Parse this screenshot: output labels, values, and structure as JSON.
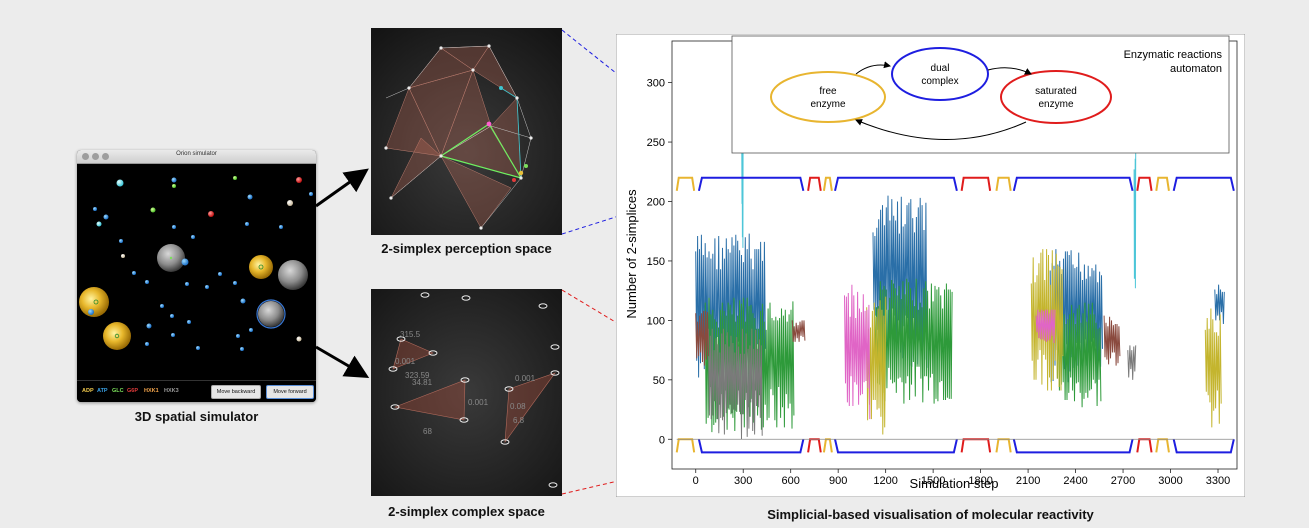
{
  "simulator": {
    "title": "Orion simulator",
    "legend": [
      {
        "label": "ADP",
        "color": "#f2c94c"
      },
      {
        "label": "ATP",
        "color": "#3aa3e8"
      },
      {
        "label": "GLC",
        "color": "#7be05a"
      },
      {
        "label": "G6P",
        "color": "#e23b3b"
      },
      {
        "label": "HXK1",
        "color": "#f0a24a"
      },
      {
        "label": "HXK3",
        "color": "#9b9b9b"
      }
    ],
    "back_label": "Move backward",
    "forward_label": "Move forward",
    "caption": "3D spatial simulator"
  },
  "perception": {
    "caption": "2-simplex perception space"
  },
  "complex": {
    "caption": "2-simplex complex space",
    "labels": [
      "315.5",
      "0.001",
      "323.59",
      "34.81",
      "0.001",
      "0.001",
      "0.08",
      "6.8",
      "68"
    ]
  },
  "main": {
    "caption": "Simplicial-based visualisation of molecular reactivity",
    "automaton": {
      "title_line1": "Enzymatic reactions",
      "title_line2": "automaton",
      "free_line1": "free",
      "free_line2": "enzyme",
      "dual_line1": "dual",
      "dual_line2": "complex",
      "sat_line1": "saturated",
      "sat_line2": "enzyme",
      "free_color": "#e8b530",
      "dual_color": "#1e1ee0",
      "sat_color": "#e01c1c"
    }
  },
  "chart_data": {
    "type": "line",
    "xlabel": "Simulation step",
    "ylabel": "Number of 2-simplices",
    "xlim": [
      -150,
      3420
    ],
    "ylim": [
      -25,
      335
    ],
    "xticks": [
      0,
      300,
      600,
      900,
      1200,
      1500,
      1800,
      2100,
      2400,
      2700,
      3000,
      3300
    ],
    "yticks": [
      0,
      50,
      100,
      150,
      200,
      250,
      300
    ],
    "state_track": [
      {
        "state": "free",
        "start": -120,
        "end": -10
      },
      {
        "state": "dual",
        "start": 20,
        "end": 680
      },
      {
        "state": "saturated",
        "start": 710,
        "end": 790
      },
      {
        "state": "free",
        "start": 810,
        "end": 860
      },
      {
        "state": "dual",
        "start": 880,
        "end": 1650
      },
      {
        "state": "saturated",
        "start": 1680,
        "end": 1860
      },
      {
        "state": "free",
        "start": 1900,
        "end": 1990
      },
      {
        "state": "dual",
        "start": 2010,
        "end": 2760
      },
      {
        "state": "saturated",
        "start": 2790,
        "end": 2880
      },
      {
        "state": "free",
        "start": 2910,
        "end": 2990
      },
      {
        "state": "dual",
        "start": 3020,
        "end": 3400
      }
    ],
    "series": [
      {
        "color": "#2a6fa8",
        "segments": [
          {
            "start": 0,
            "end": 440,
            "low": 40,
            "high": 175,
            "x": [],
            "y": []
          },
          {
            "start": 1120,
            "end": 1460,
            "low": 60,
            "high": 205,
            "x": [],
            "y": []
          },
          {
            "start": 2240,
            "end": 2570,
            "low": 45,
            "high": 160,
            "x": [],
            "y": []
          },
          {
            "start": 3280,
            "end": 3340,
            "low": 95,
            "high": 130,
            "x": [],
            "y": []
          }
        ]
      },
      {
        "color": "#2e9a3a",
        "segments": [
          {
            "start": 60,
            "end": 620,
            "low": 5,
            "high": 120,
            "x": [],
            "y": []
          },
          {
            "start": 1130,
            "end": 1620,
            "low": 30,
            "high": 135,
            "x": [],
            "y": []
          },
          {
            "start": 2280,
            "end": 2560,
            "low": 25,
            "high": 115,
            "x": [],
            "y": []
          }
        ]
      },
      {
        "color": "#c4b52e",
        "segments": [
          {
            "start": 1080,
            "end": 1200,
            "low": 0,
            "high": 120,
            "x": [],
            "y": []
          },
          {
            "start": 2120,
            "end": 2320,
            "low": 40,
            "high": 160,
            "x": [],
            "y": []
          },
          {
            "start": 3220,
            "end": 3320,
            "low": 5,
            "high": 110,
            "x": [],
            "y": []
          }
        ]
      },
      {
        "color": "#e065c6",
        "segments": [
          {
            "start": 940,
            "end": 1100,
            "low": 15,
            "high": 130,
            "x": [],
            "y": []
          },
          {
            "start": 2150,
            "end": 2270,
            "low": 80,
            "high": 110,
            "x": [],
            "y": []
          }
        ]
      },
      {
        "color": "#7a7a7a",
        "segments": [
          {
            "start": 80,
            "end": 420,
            "low": 0,
            "high": 95,
            "x": [],
            "y": []
          },
          {
            "start": 2730,
            "end": 2780,
            "low": 50,
            "high": 80,
            "x": [],
            "y": []
          }
        ]
      },
      {
        "color": "#8a4a3e",
        "segments": [
          {
            "start": 0,
            "end": 80,
            "low": 60,
            "high": 110,
            "x": [],
            "y": []
          },
          {
            "start": 610,
            "end": 690,
            "low": 80,
            "high": 100,
            "x": [],
            "y": []
          },
          {
            "start": 2580,
            "end": 2680,
            "low": 60,
            "high": 105,
            "x": [],
            "y": []
          }
        ]
      },
      {
        "color": "#4dc6d8",
        "segments": [
          {
            "start": 290,
            "end": 300,
            "low": 160,
            "high": 320,
            "x": [],
            "y": []
          },
          {
            "start": 2770,
            "end": 2780,
            "low": 120,
            "high": 245,
            "x": [],
            "y": []
          }
        ]
      }
    ]
  }
}
